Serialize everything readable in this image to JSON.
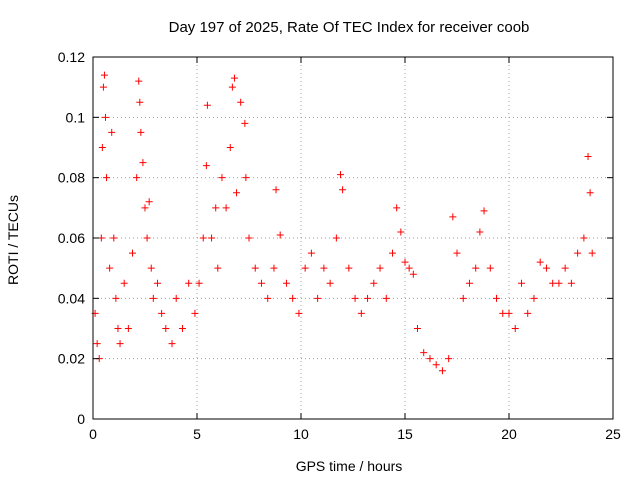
{
  "chart_data": {
    "type": "scatter",
    "title": "Day 197 of 2025, Rate Of TEC Index for receiver coob",
    "xlabel": "GPS time / hours",
    "ylabel": "ROTI / TECUs",
    "xlim": [
      0,
      25
    ],
    "ylim": [
      0,
      0.12
    ],
    "xticks": [
      "0",
      "5",
      "10",
      "15",
      "20",
      "25"
    ],
    "yticks": [
      "0",
      "0.02",
      "0.04",
      "0.06",
      "0.08",
      "0.1",
      "0.12"
    ],
    "grid": true,
    "marker": "plus",
    "color": "#ff0000",
    "series": [
      {
        "x": [
          0.1,
          0.2,
          0.3,
          0.4,
          0.45,
          0.5,
          0.55,
          0.6,
          0.65,
          0.8,
          0.9,
          1.0,
          1.1,
          1.2,
          1.3,
          1.5,
          1.7,
          1.9,
          2.1,
          2.2,
          2.25,
          2.3,
          2.4,
          2.5,
          2.6,
          2.7,
          2.8,
          2.9,
          3.1,
          3.3,
          3.5,
          3.8,
          4.0,
          4.3,
          4.6,
          4.9,
          5.1,
          5.3,
          5.45,
          5.5,
          5.7,
          5.9,
          6.0,
          6.2,
          6.4,
          6.6,
          6.7,
          6.8,
          6.9,
          7.1,
          7.3,
          7.35,
          7.5,
          7.8,
          8.1,
          8.4,
          8.7,
          8.8,
          9.0,
          9.3,
          9.6,
          9.9,
          10.2,
          10.5,
          10.8,
          11.1,
          11.4,
          11.7,
          11.9,
          12.0,
          12.3,
          12.6,
          12.9,
          13.2,
          13.5,
          13.8,
          14.1,
          14.4,
          14.6,
          14.8,
          15.0,
          15.2,
          15.4,
          15.6,
          15.9,
          16.2,
          16.5,
          16.8,
          17.1,
          17.3,
          17.5,
          17.8,
          18.1,
          18.4,
          18.6,
          18.8,
          19.1,
          19.4,
          19.7,
          20.0,
          20.3,
          20.6,
          20.9,
          21.2,
          21.5,
          21.8,
          22.1,
          22.4,
          22.7,
          23.0,
          23.3,
          23.6,
          23.8,
          23.9,
          24.0
        ],
        "y": [
          0.035,
          0.025,
          0.02,
          0.06,
          0.09,
          0.11,
          0.114,
          0.1,
          0.08,
          0.05,
          0.095,
          0.06,
          0.04,
          0.03,
          0.025,
          0.045,
          0.03,
          0.055,
          0.08,
          0.112,
          0.105,
          0.095,
          0.085,
          0.07,
          0.06,
          0.072,
          0.05,
          0.04,
          0.045,
          0.035,
          0.03,
          0.025,
          0.04,
          0.03,
          0.045,
          0.035,
          0.045,
          0.06,
          0.084,
          0.104,
          0.06,
          0.07,
          0.05,
          0.08,
          0.07,
          0.09,
          0.11,
          0.113,
          0.075,
          0.105,
          0.098,
          0.08,
          0.06,
          0.05,
          0.045,
          0.04,
          0.05,
          0.076,
          0.061,
          0.045,
          0.04,
          0.035,
          0.05,
          0.055,
          0.04,
          0.05,
          0.045,
          0.06,
          0.081,
          0.076,
          0.05,
          0.04,
          0.035,
          0.04,
          0.045,
          0.05,
          0.04,
          0.055,
          0.07,
          0.062,
          0.052,
          0.05,
          0.048,
          0.03,
          0.022,
          0.02,
          0.018,
          0.016,
          0.02,
          0.067,
          0.055,
          0.04,
          0.045,
          0.05,
          0.062,
          0.069,
          0.05,
          0.04,
          0.035,
          0.035,
          0.03,
          0.045,
          0.035,
          0.04,
          0.052,
          0.05,
          0.045,
          0.045,
          0.05,
          0.045,
          0.055,
          0.06,
          0.087,
          0.075,
          0.055
        ]
      }
    ]
  }
}
